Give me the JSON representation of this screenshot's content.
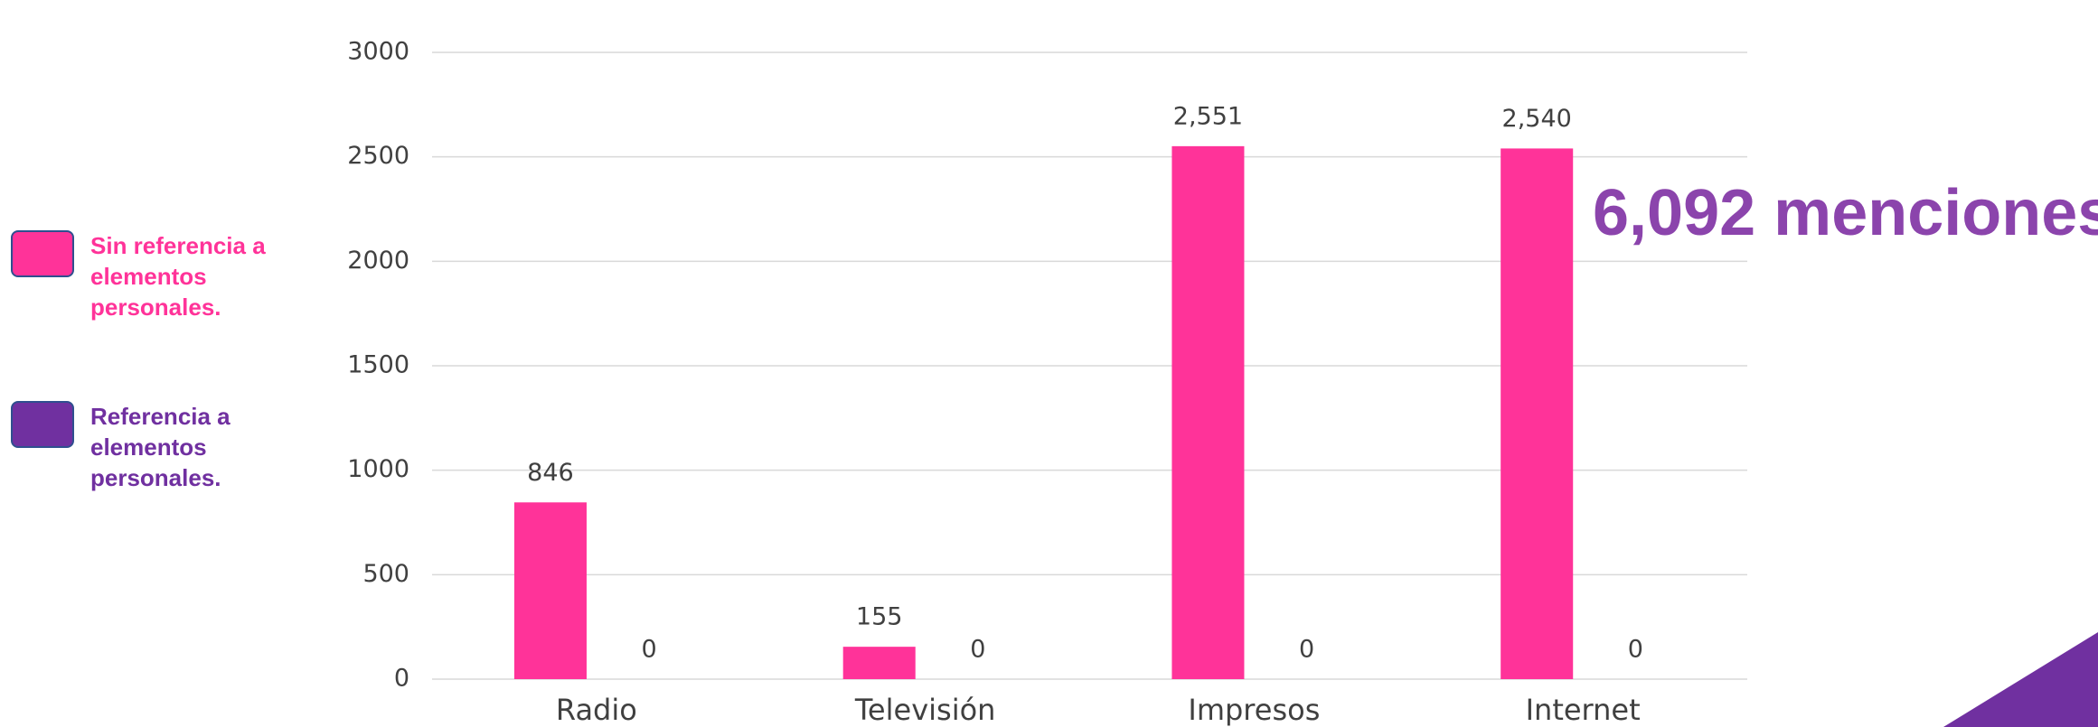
{
  "chart_data": {
    "type": "bar",
    "categories": [
      "Radio",
      "Televisión",
      "Impresos",
      "Internet"
    ],
    "series": [
      {
        "name": "Sin referencia a elementos personales.",
        "color": "#ff3399",
        "values": [
          846,
          155,
          2551,
          2540
        ],
        "value_labels": [
          "846",
          "155",
          "2,551",
          "2,540"
        ]
      },
      {
        "name": "Referencia a elementos personales.",
        "color": "#7030a0",
        "values": [
          0,
          0,
          0,
          0
        ]
      }
    ],
    "ylim": [
      0,
      3000
    ],
    "yticks": [
      0,
      500,
      1000,
      1500,
      2000,
      2500,
      3000
    ],
    "grid": true,
    "annotation": "6,092 menciones",
    "annotation_color": "#8b44ac",
    "legend": "left"
  }
}
